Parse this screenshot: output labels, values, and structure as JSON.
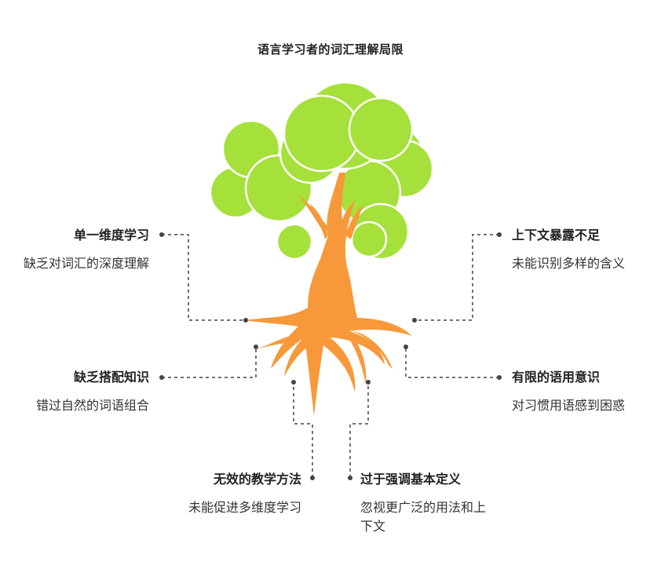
{
  "title": "语言学习者的词汇理解局限",
  "items": [
    {
      "id": "single-dimension",
      "heading": "单一维度学习",
      "description": "缺乏对词汇的深度理解"
    },
    {
      "id": "collocation",
      "heading": "缺乏搭配知识",
      "description": "错过自然的词语组合"
    },
    {
      "id": "teaching",
      "heading": "无效的教学方法",
      "description": "未能促进多维度学习"
    },
    {
      "id": "context",
      "heading": "上下文暴露不足",
      "description": "未能识别多样的含义"
    },
    {
      "id": "pragmatic",
      "heading": "有限的语用意识",
      "description": "对习惯用语感到困惑"
    },
    {
      "id": "definition",
      "heading": "过于强调基本定义",
      "description": "忽视更广泛的用法和上下文"
    }
  ],
  "colors": {
    "foliage": "#a6e03b",
    "trunk": "#f7993a",
    "connector": "#444444"
  }
}
